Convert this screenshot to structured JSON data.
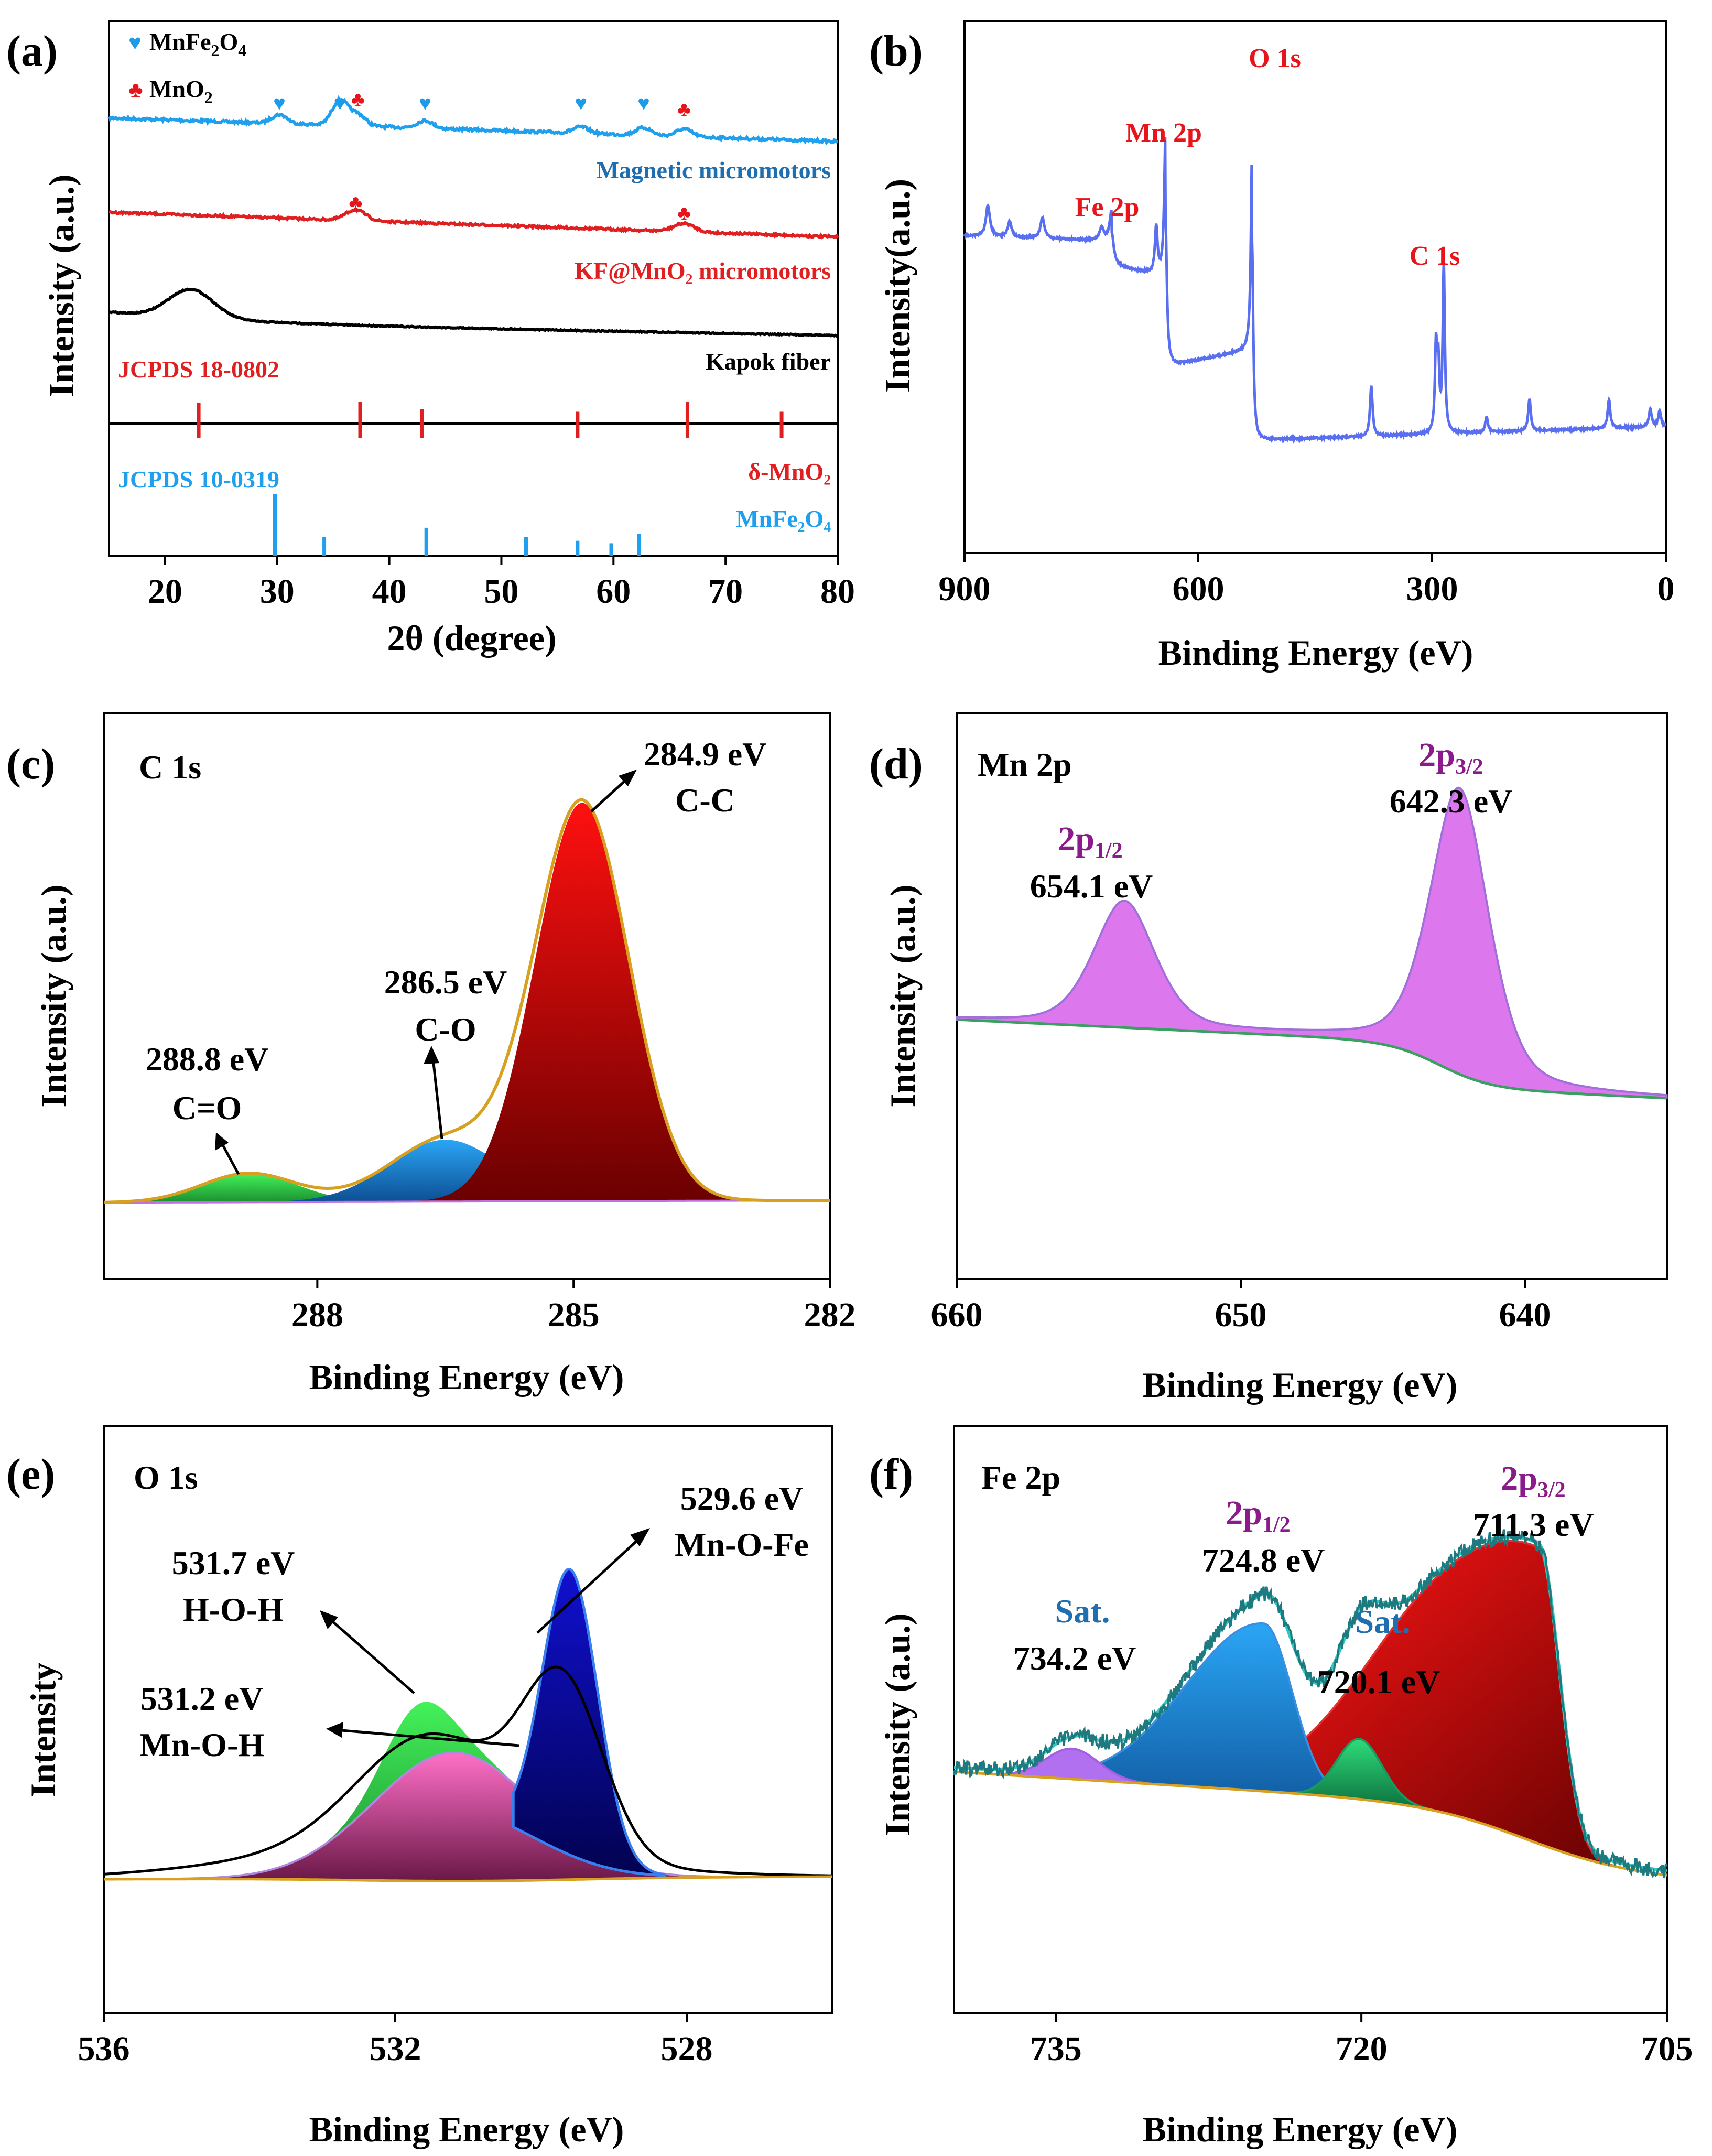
{
  "panels": {
    "a": {
      "label": "(a)",
      "chart_data": {
        "type": "line",
        "xlabel": "2θ (degree)",
        "ylabel": "Intensity (a.u.)",
        "xlim": [
          15,
          80
        ],
        "xticks": [
          "20",
          "30",
          "40",
          "50",
          "60",
          "70",
          "80"
        ],
        "legend": [
          {
            "symbol": "♥",
            "text": "MnFe",
            "sub1": "2",
            "mid": "O",
            "sub2": "4",
            "color": "#1e9be6"
          },
          {
            "symbol": "♣",
            "text": "MnO",
            "sub1": "2",
            "mid": "",
            "sub2": "",
            "color": "#e8141b"
          }
        ],
        "series": [
          {
            "name": "Magnetic micromotors",
            "color": "#1ea0ee",
            "peaks": [
              [
                30.2,
                0.35
              ],
              [
                35.6,
                1.0
              ],
              [
                37.2,
                0.45
              ],
              [
                43.2,
                0.3
              ],
              [
                57.1,
                0.25
              ],
              [
                62.7,
                0.3
              ],
              [
                66.3,
                0.3
              ]
            ],
            "markers_heart": [
              30.2,
              35.6,
              43.2,
              57.1,
              62.7
            ],
            "markers_club": [
              37.2,
              66.3
            ]
          },
          {
            "name": "KF@MnO₂ micromotors",
            "color": "#e02020",
            "peaks": [
              [
                37.0,
                0.45
              ],
              [
                66.3,
                0.35
              ]
            ],
            "markers_club": [
              37.0,
              66.3
            ]
          },
          {
            "name": "Kapok fiber",
            "color": "#000000",
            "peaks": [
              [
                22.3,
                1.0
              ]
            ]
          }
        ],
        "references": [
          {
            "name": "JCPDS 18-0802",
            "color": "#e02020",
            "phase": "δ-MnO₂",
            "lines": [
              [
                23.0,
                0.6
              ],
              [
                37.4,
                0.62
              ],
              [
                42.9,
                0.5
              ],
              [
                56.8,
                0.45
              ],
              [
                66.6,
                0.62
              ],
              [
                75.0,
                0.45
              ]
            ]
          },
          {
            "name": "JCPDS 10-0319",
            "color": "#1ea0ee",
            "phase": "MnFe₂O₄",
            "lines": [
              [
                29.8,
                1.0
              ],
              [
                34.2,
                0.3
              ],
              [
                43.3,
                0.45
              ],
              [
                52.2,
                0.3
              ],
              [
                56.8,
                0.24
              ],
              [
                59.8,
                0.2
              ],
              [
                62.3,
                0.35
              ]
            ]
          }
        ]
      }
    },
    "b": {
      "label": "(b)",
      "chart_data": {
        "type": "line",
        "xlabel": "Binding Energy (eV)",
        "ylabel": "Intensity(a.u.)",
        "xlim": [
          900,
          0
        ],
        "xticks": [
          "900",
          "600",
          "300",
          "0"
        ],
        "color": "#5a6ff0",
        "annotations": [
          {
            "text": "O 1s",
            "x": 531
          },
          {
            "text": "Mn 2p",
            "x": 642
          },
          {
            "text": "Fe 2p",
            "x": 711
          },
          {
            "text": "C 1s",
            "x": 285
          }
        ]
      }
    },
    "c": {
      "label": "(c)",
      "title": "C 1s",
      "chart_data": {
        "type": "area",
        "xlabel": "Binding Energy (eV)",
        "ylabel": "Intensity (a.u.)",
        "xlim": [
          290.5,
          282
        ],
        "xticks": [
          "288",
          "285",
          "282"
        ],
        "components": [
          {
            "center": 288.8,
            "label_ev": "288.8 eV",
            "label_bond": "C=O"
          },
          {
            "center": 286.5,
            "label_ev": "286.5 eV",
            "label_bond": "C-O"
          },
          {
            "center": 284.9,
            "label_ev": "284.9 eV",
            "label_bond": "C-C"
          }
        ]
      }
    },
    "d": {
      "label": "(d)",
      "title": "Mn 2p",
      "chart_data": {
        "type": "area",
        "xlabel": "Binding Energy (eV)",
        "ylabel": "Intensity (a.u.)",
        "xlim": [
          660,
          635
        ],
        "xticks": [
          "660",
          "650",
          "640"
        ],
        "components": [
          {
            "center": 654.1,
            "orbital": "2p",
            "sub": "1/2",
            "label_ev": "654.1 eV"
          },
          {
            "center": 642.3,
            "orbital": "2p",
            "sub": "3/2",
            "label_ev": "642.3 eV"
          }
        ]
      }
    },
    "e": {
      "label": "(e)",
      "title": "O 1s",
      "chart_data": {
        "type": "area",
        "xlabel": "Binding Energy (eV)",
        "ylabel": "Intensity",
        "xlim": [
          536,
          526
        ],
        "xticks": [
          "536",
          "532",
          "528"
        ],
        "components": [
          {
            "center": 531.7,
            "label_ev": "531.7 eV",
            "label_bond": "H-O-H"
          },
          {
            "center": 531.2,
            "label_ev": "531.2 eV",
            "label_bond": "Mn-O-H"
          },
          {
            "center": 529.6,
            "label_ev": "529.6 eV",
            "label_bond": "Mn-O-Fe"
          }
        ]
      }
    },
    "f": {
      "label": "(f)",
      "title": "Fe 2p",
      "chart_data": {
        "type": "area",
        "xlabel": "Binding Energy (eV)",
        "ylabel": "Intensity (a.u.)",
        "xlim": [
          740,
          705
        ],
        "xticks": [
          "735",
          "720",
          "705"
        ],
        "components": [
          {
            "center": 734.2,
            "name": "Sat.",
            "label_ev": "734.2 eV"
          },
          {
            "center": 724.8,
            "orbital": "2p",
            "sub": "1/2",
            "label_ev": "724.8 eV"
          },
          {
            "center": 720.1,
            "name": "Sat.",
            "label_ev": "720.1 eV"
          },
          {
            "center": 711.3,
            "orbital": "2p",
            "sub": "3/2",
            "label_ev": "711.3 eV"
          }
        ]
      }
    }
  }
}
